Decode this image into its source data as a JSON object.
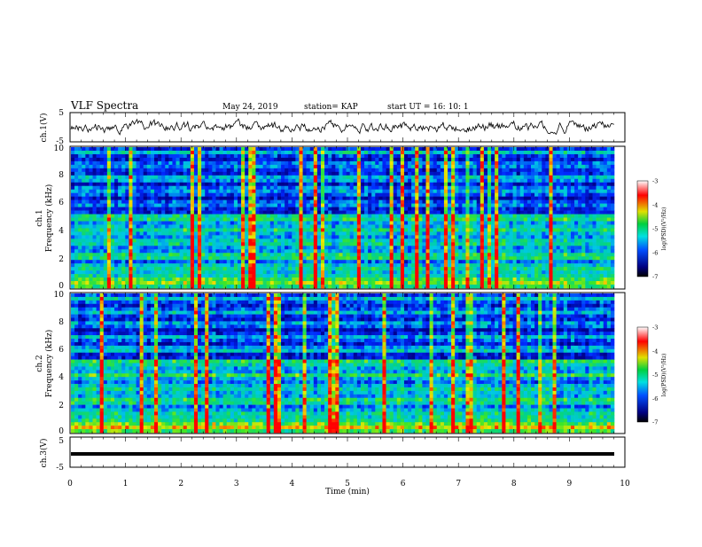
{
  "header": {
    "title": "VLF Spectra",
    "date": "May 24, 2019",
    "station": "station= KAP",
    "start_ut": "start  UT  =   16: 10: 1"
  },
  "colors": {
    "spec_low": "#000088",
    "spec_mid": "#00c8c8",
    "spec_high": "#ff0000",
    "waveform": "#000000"
  },
  "chart_data": [
    {
      "type": "line",
      "ylabel": "ch.1(V)",
      "xlim": [
        0,
        10
      ],
      "ylim": [
        -5,
        5
      ],
      "yticks": [
        "5",
        "-5"
      ]
    },
    {
      "type": "heatmap",
      "ylabel": "ch.1 Frequency (kHz)",
      "ylabel_line1": "ch.1",
      "ylabel_line2": "Frequency (kHz)",
      "xlim": [
        0,
        9.8
      ],
      "ylim": [
        0,
        10
      ],
      "yticks": [
        "0",
        "2",
        "4",
        "6",
        "8",
        "10"
      ],
      "colorbar": {
        "label": "log(PSD)(V²/Hz)",
        "range": [
          -7,
          -3
        ],
        "ticks": [
          "-3",
          "-4",
          "-5",
          "-6",
          "-7"
        ]
      }
    },
    {
      "type": "heatmap",
      "ylabel": "ch.2 Frequency (kHz)",
      "ylabel_line1": "ch.2",
      "ylabel_line2": "Frequency (kHz)",
      "xlim": [
        0,
        9.8
      ],
      "ylim": [
        0,
        10
      ],
      "yticks": [
        "0",
        "2",
        "4",
        "6",
        "8",
        "10"
      ],
      "colorbar": {
        "label": "log(PSD)(V²/Hz)",
        "range": [
          -7,
          -3
        ],
        "ticks": [
          "-3",
          "-4",
          "-5",
          "-6",
          "-7"
        ]
      }
    },
    {
      "type": "line",
      "ylabel": "ch.3(V)",
      "xlim": [
        0,
        10
      ],
      "ylim": [
        -5,
        5
      ],
      "yticks": [
        "5",
        "-5"
      ],
      "constant_value": 0
    }
  ],
  "xaxis": {
    "label": "Time (min)",
    "ticks": [
      "0",
      "1",
      "2",
      "3",
      "4",
      "5",
      "6",
      "7",
      "8",
      "9",
      "10"
    ]
  }
}
